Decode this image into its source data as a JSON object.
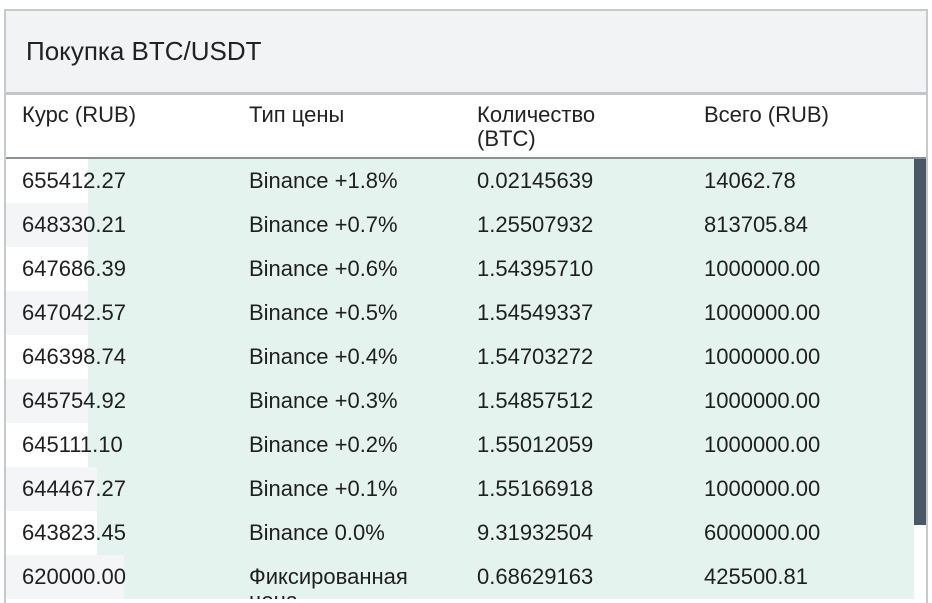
{
  "header": {
    "title": "Покупка BTC/USDT"
  },
  "columns": {
    "rate": "Курс (RUB)",
    "price_type": "Тип цены",
    "quantity": "Количество\n(BTC)",
    "total": "Всего (RUB)"
  },
  "rows": [
    {
      "rate": "655412.27",
      "price_type": "Binance +1.8%",
      "quantity": "0.02145639",
      "total": "14062.78",
      "depth": 0.91
    },
    {
      "rate": "648330.21",
      "price_type": "Binance +0.7%",
      "quantity": "1.25507932",
      "total": "813705.84",
      "depth": 0.91
    },
    {
      "rate": "647686.39",
      "price_type": "Binance +0.6%",
      "quantity": "1.54395710",
      "total": "1000000.00",
      "depth": 0.91
    },
    {
      "rate": "647042.57",
      "price_type": "Binance +0.5%",
      "quantity": "1.54549337",
      "total": "1000000.00",
      "depth": 0.91
    },
    {
      "rate": "646398.74",
      "price_type": "Binance +0.4%",
      "quantity": "1.54703272",
      "total": "1000000.00",
      "depth": 0.91
    },
    {
      "rate": "645754.92",
      "price_type": "Binance +0.3%",
      "quantity": "1.54857512",
      "total": "1000000.00",
      "depth": 0.91
    },
    {
      "rate": "645111.10",
      "price_type": "Binance +0.2%",
      "quantity": "1.55012059",
      "total": "1000000.00",
      "depth": 0.91
    },
    {
      "rate": "644467.27",
      "price_type": "Binance +0.1%",
      "quantity": "1.55166918",
      "total": "1000000.00",
      "depth": 0.9
    },
    {
      "rate": "643823.45",
      "price_type": "Binance 0.0%",
      "quantity": "9.31932504",
      "total": "6000000.00",
      "depth": 0.9
    },
    {
      "rate": "620000.00",
      "price_type": "Фиксированная\nцена",
      "quantity": "0.68629163",
      "total": "425500.81",
      "depth": 0.87
    }
  ],
  "colors": {
    "depth_fill": "#e5f3ee",
    "scrollbar": "#4a5866",
    "header_bg": "#f1f3f5"
  }
}
